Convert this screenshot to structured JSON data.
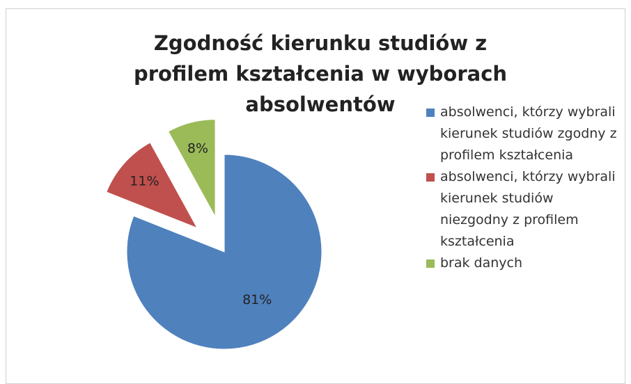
{
  "chart_data": {
    "type": "pie",
    "title": "Zgodność kierunku studiów z profilem kształcenia w wyborach absolwentów",
    "categories": [
      "absolwenci, którzy wybrali kierunek studiów zgodny z profilem kształcenia",
      "absolwenci, którzy wybrali kierunek studiów niezgodny z profilem kształcenia",
      "brak danych"
    ],
    "values": [
      81,
      11,
      8
    ],
    "value_labels": [
      "81%",
      "11%",
      "8%"
    ],
    "colors": [
      "#4f81bd",
      "#c0504d",
      "#9bbb59"
    ],
    "legend": "right"
  }
}
